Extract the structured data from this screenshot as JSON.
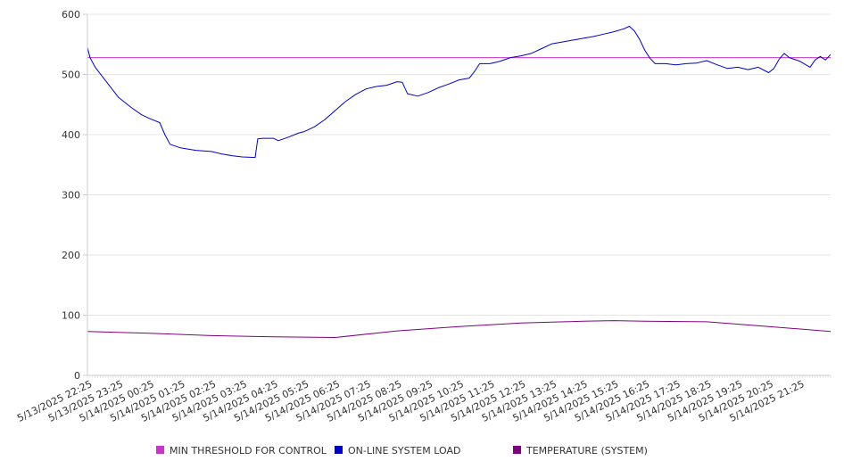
{
  "chart_data": {
    "type": "line",
    "title": "",
    "xlabel": "",
    "ylabel": "",
    "ylim": [
      0,
      600
    ],
    "y_ticks": [
      0,
      100,
      200,
      300,
      400,
      500,
      600
    ],
    "grid": true,
    "legend_position": "bottom",
    "x_tick_labels": [
      "5/13/2025 22:25",
      "5/13/2025 23:25",
      "5/14/2025 00:25",
      "5/14/2025 01:25",
      "5/14/2025 02:25",
      "5/14/2025 03:25",
      "5/14/2025 04:25",
      "5/14/2025 05:25",
      "5/14/2025 06:25",
      "5/14/2025 07:25",
      "5/14/2025 08:25",
      "5/14/2025 09:25",
      "5/14/2025 10:25",
      "5/14/2025 11:25",
      "5/14/2025 12:25",
      "5/14/2025 13:25",
      "5/14/2025 14:25",
      "5/14/2025 15:25",
      "5/14/2025 16:25",
      "5/14/2025 17:25",
      "5/14/2025 18:25",
      "5/14/2025 19:25",
      "5/14/2025 20:25",
      "5/14/2025 21:25"
    ],
    "x_range": [
      "5/13/2025 22:25",
      "5/14/2025 22:25"
    ],
    "series": [
      {
        "name": "MIN THRESHOLD FOR CONTROL",
        "color": "#cc33cc",
        "points": [
          [
            "5/13/2025 22:25",
            528
          ],
          [
            "5/14/2025 22:25",
            528
          ]
        ]
      },
      {
        "name": "ON-LINE SYSTEM LOAD",
        "color": "#0000cc",
        "points": [
          [
            "5/13/2025 22:25",
            545
          ],
          [
            "5/13/2025 22:30",
            528
          ],
          [
            "5/13/2025 22:40",
            512
          ],
          [
            "5/13/2025 23:00",
            490
          ],
          [
            "5/13/2025 23:25",
            462
          ],
          [
            "5/13/2025 23:50",
            445
          ],
          [
            "5/14/2025 00:10",
            433
          ],
          [
            "5/14/2025 00:25",
            427
          ],
          [
            "5/14/2025 00:45",
            420
          ],
          [
            "5/14/2025 00:55",
            400
          ],
          [
            "5/14/2025 01:05",
            384
          ],
          [
            "5/14/2025 01:25",
            378
          ],
          [
            "5/14/2025 01:55",
            374
          ],
          [
            "5/14/2025 02:25",
            372
          ],
          [
            "5/14/2025 02:45",
            368
          ],
          [
            "5/14/2025 03:05",
            365
          ],
          [
            "5/14/2025 03:25",
            363
          ],
          [
            "5/14/2025 03:50",
            362
          ],
          [
            "5/14/2025 03:55",
            393
          ],
          [
            "5/14/2025 04:05",
            394
          ],
          [
            "5/14/2025 04:25",
            394
          ],
          [
            "5/14/2025 04:35",
            390
          ],
          [
            "5/14/2025 04:55",
            396
          ],
          [
            "5/14/2025 05:15",
            403
          ],
          [
            "5/14/2025 05:25",
            405
          ],
          [
            "5/14/2025 05:45",
            413
          ],
          [
            "5/14/2025 06:05",
            425
          ],
          [
            "5/14/2025 06:25",
            440
          ],
          [
            "5/14/2025 06:45",
            455
          ],
          [
            "5/14/2025 07:05",
            467
          ],
          [
            "5/14/2025 07:25",
            476
          ],
          [
            "5/14/2025 07:45",
            480
          ],
          [
            "5/14/2025 08:05",
            482
          ],
          [
            "5/14/2025 08:25",
            488
          ],
          [
            "5/14/2025 08:35",
            487
          ],
          [
            "5/14/2025 08:45",
            468
          ],
          [
            "5/14/2025 09:05",
            464
          ],
          [
            "5/14/2025 09:25",
            470
          ],
          [
            "5/14/2025 09:45",
            478
          ],
          [
            "5/14/2025 10:05",
            484
          ],
          [
            "5/14/2025 10:25",
            491
          ],
          [
            "5/14/2025 10:45",
            494
          ],
          [
            "5/14/2025 10:55",
            505
          ],
          [
            "5/14/2025 11:05",
            518
          ],
          [
            "5/14/2025 11:25",
            518
          ],
          [
            "5/14/2025 11:45",
            522
          ],
          [
            "5/14/2025 12:05",
            528
          ],
          [
            "5/14/2025 12:25",
            531
          ],
          [
            "5/14/2025 12:45",
            535
          ],
          [
            "5/14/2025 13:05",
            543
          ],
          [
            "5/14/2025 13:25",
            551
          ],
          [
            "5/14/2025 13:45",
            554
          ],
          [
            "5/14/2025 14:05",
            557
          ],
          [
            "5/14/2025 14:25",
            560
          ],
          [
            "5/14/2025 14:45",
            563
          ],
          [
            "5/14/2025 15:05",
            567
          ],
          [
            "5/14/2025 15:25",
            571
          ],
          [
            "5/14/2025 15:45",
            576
          ],
          [
            "5/14/2025 15:55",
            580
          ],
          [
            "5/14/2025 16:05",
            572
          ],
          [
            "5/14/2025 16:15",
            558
          ],
          [
            "5/14/2025 16:25",
            540
          ],
          [
            "5/14/2025 16:35",
            527
          ],
          [
            "5/14/2025 16:45",
            518
          ],
          [
            "5/14/2025 17:05",
            518
          ],
          [
            "5/14/2025 17:25",
            516
          ],
          [
            "5/14/2025 17:45",
            518
          ],
          [
            "5/14/2025 18:05",
            519
          ],
          [
            "5/14/2025 18:25",
            523
          ],
          [
            "5/14/2025 18:45",
            516
          ],
          [
            "5/14/2025 19:05",
            510
          ],
          [
            "5/14/2025 19:25",
            512
          ],
          [
            "5/14/2025 19:45",
            508
          ],
          [
            "5/14/2025 20:05",
            512
          ],
          [
            "5/14/2025 20:25",
            503
          ],
          [
            "5/14/2025 20:35",
            510
          ],
          [
            "5/14/2025 20:45",
            525
          ],
          [
            "5/14/2025 20:55",
            535
          ],
          [
            "5/14/2025 21:05",
            528
          ],
          [
            "5/14/2025 21:25",
            522
          ],
          [
            "5/14/2025 21:45",
            512
          ],
          [
            "5/14/2025 21:55",
            524
          ],
          [
            "5/14/2025 22:05",
            530
          ],
          [
            "5/14/2025 22:15",
            524
          ],
          [
            "5/14/2025 22:25",
            533
          ]
        ]
      },
      {
        "name": "TEMPERATURE (SYSTEM)",
        "color": "#800080",
        "points": [
          [
            "5/13/2025 22:25",
            73
          ],
          [
            "5/14/2025 00:25",
            70
          ],
          [
            "5/14/2025 02:25",
            66
          ],
          [
            "5/14/2025 04:25",
            64
          ],
          [
            "5/14/2025 06:25",
            63
          ],
          [
            "5/14/2025 08:25",
            74
          ],
          [
            "5/14/2025 10:25",
            81
          ],
          [
            "5/14/2025 12:25",
            87
          ],
          [
            "5/14/2025 14:25",
            90
          ],
          [
            "5/14/2025 15:25",
            91
          ],
          [
            "5/14/2025 16:25",
            90
          ],
          [
            "5/14/2025 18:25",
            89
          ],
          [
            "5/14/2025 20:25",
            81
          ],
          [
            "5/14/2025 22:25",
            73
          ]
        ]
      }
    ]
  }
}
